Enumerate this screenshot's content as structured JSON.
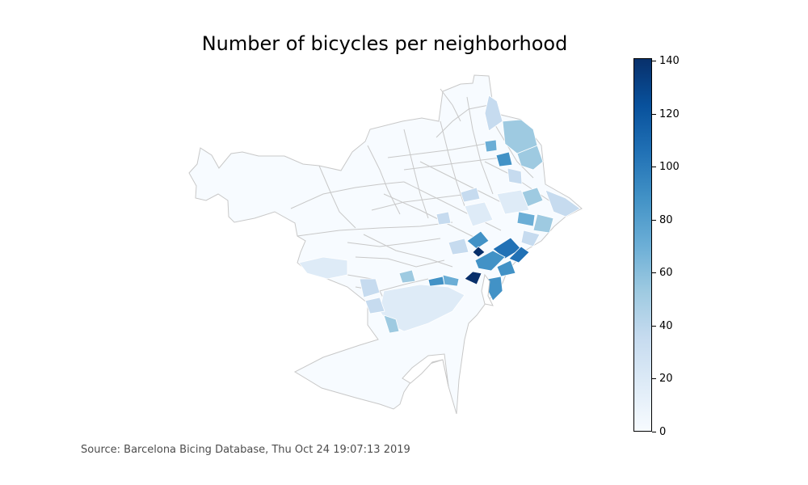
{
  "title": "Number of bicycles per neighborhood",
  "source_text": "Source: Barcelona Bicing Database, Thu Oct 24 19:07:13 2019",
  "colorbar": {
    "colormap": "Blues",
    "min": 0,
    "max": 141,
    "ticks": [
      "0",
      "20",
      "40",
      "60",
      "80",
      "100",
      "120",
      "140"
    ],
    "tick_values": [
      0,
      20,
      40,
      60,
      80,
      100,
      120,
      140
    ]
  },
  "colors": {
    "boundary": "#c8c8c8",
    "base": "#f7fbff",
    "low": "#deebf7",
    "light": "#c6dbef",
    "mid": "#9ecae1",
    "medium": "#6baed6",
    "high": "#4292c6",
    "higher": "#2171b5",
    "highest": "#08306b"
  }
}
